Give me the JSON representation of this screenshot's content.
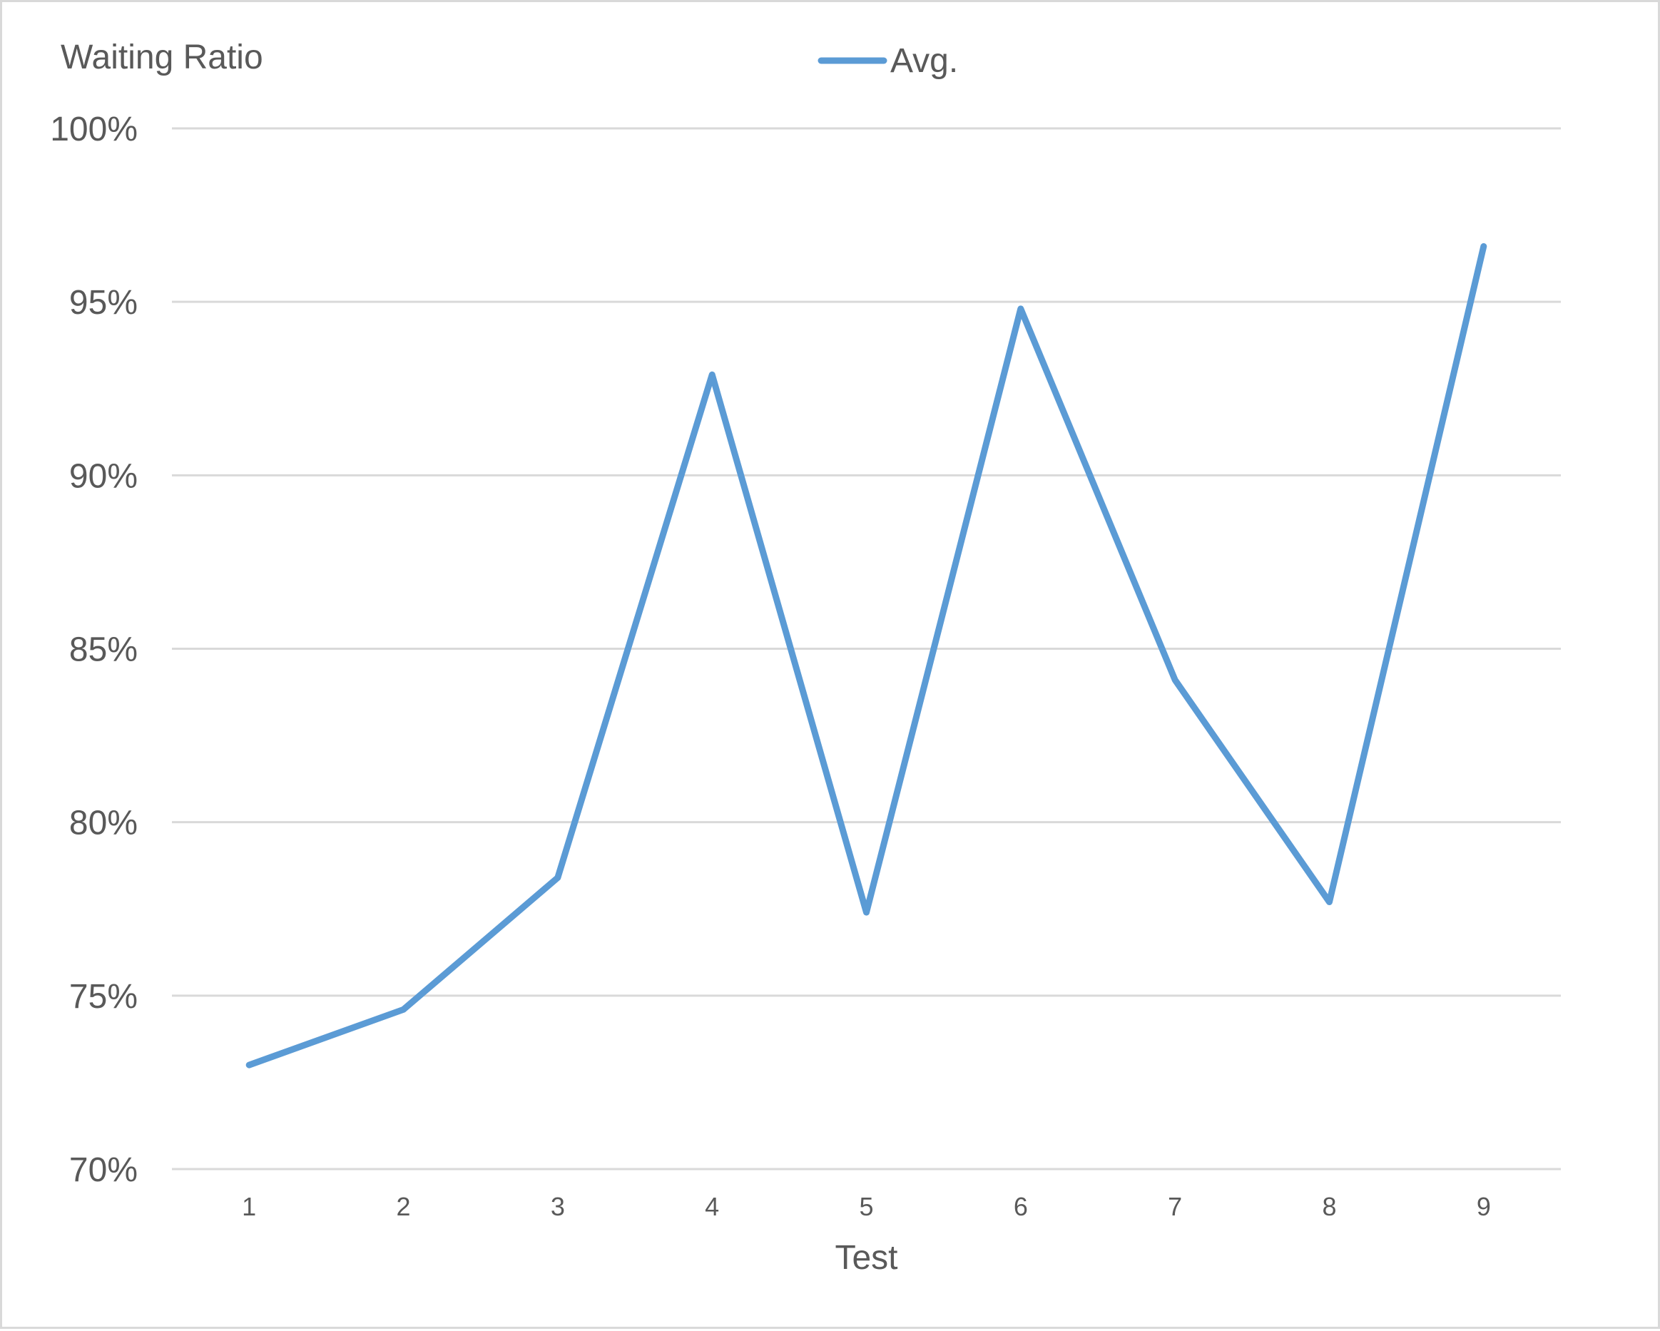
{
  "chart_data": {
    "type": "line",
    "ylabel": "Waiting Ratio",
    "xlabel": "Test",
    "x": [
      "1",
      "2",
      "3",
      "4",
      "5",
      "6",
      "7",
      "8",
      "9"
    ],
    "series": [
      {
        "name": "Avg.",
        "color": "#5b9bd5",
        "values": [
          0.73,
          0.746,
          0.784,
          0.929,
          0.774,
          0.948,
          0.841,
          0.777,
          0.966
        ]
      }
    ],
    "ylim": [
      0.7,
      1.0
    ],
    "yticks": [
      "70%",
      "75%",
      "80%",
      "85%",
      "90%",
      "95%",
      "100%"
    ],
    "grid": true,
    "legend": "top-center"
  }
}
